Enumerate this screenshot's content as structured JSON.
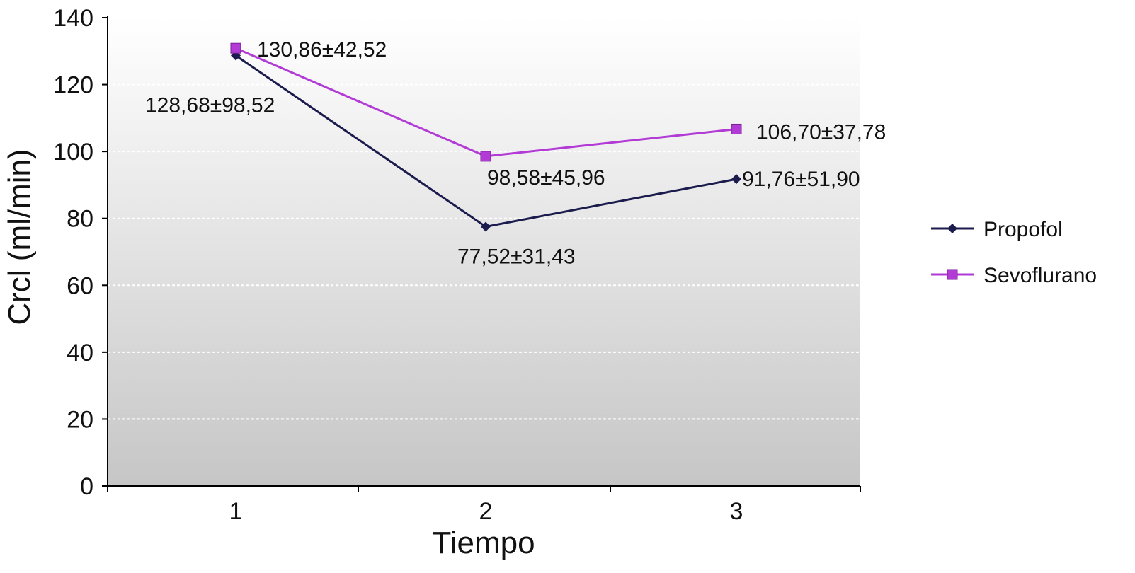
{
  "chart_data": {
    "type": "line",
    "xlabel": "Tiempo",
    "ylabel": "Crcl (ml/min)",
    "categories": [
      "1",
      "2",
      "3"
    ],
    "ylim": [
      0,
      140
    ],
    "yticks": [
      0,
      20,
      40,
      60,
      80,
      100,
      120,
      140
    ],
    "grid": true,
    "legend_position": "right",
    "series": [
      {
        "name": "Propofol",
        "values": [
          128.68,
          77.52,
          91.76
        ],
        "labels": [
          "128,68±98,52",
          "77,52±31,43",
          "91,76±51,90"
        ],
        "color": "#1b1b4d",
        "marker": "diamond"
      },
      {
        "name": "Sevoflurano",
        "values": [
          130.86,
          98.58,
          106.7
        ],
        "labels": [
          "130,86±42,52",
          "98,58±45,96",
          "106,70±37,78"
        ],
        "color": "#b23bd6",
        "marker": "square"
      }
    ]
  }
}
